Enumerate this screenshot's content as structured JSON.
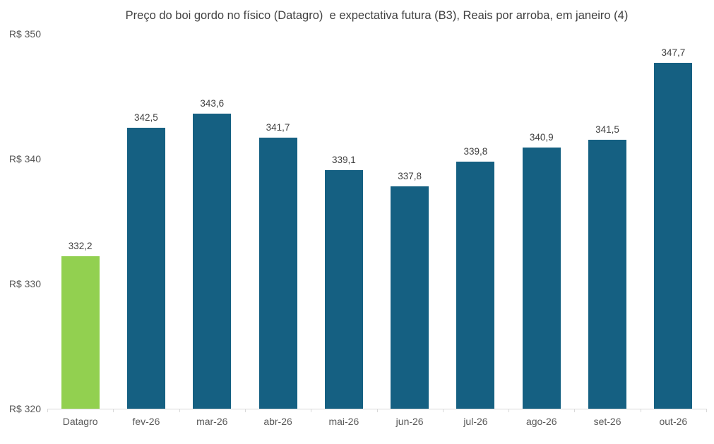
{
  "chart_data": {
    "type": "bar",
    "title": "Preço do boi gordo no físico (Datagro)  e expectativa futura (B3), Reais por arroba, em janeiro (4)",
    "categories": [
      "Datagro",
      "fev-26",
      "mar-26",
      "abr-26",
      "mai-26",
      "jun-26",
      "jul-26",
      "ago-26",
      "set-26",
      "out-26"
    ],
    "values": [
      332.2,
      342.5,
      343.6,
      341.7,
      339.1,
      337.8,
      339.8,
      340.9,
      341.5,
      347.7
    ],
    "value_labels": [
      "332,2",
      "342,5",
      "343,6",
      "341,7",
      "339,1",
      "337,8",
      "339,8",
      "340,9",
      "341,5",
      "347,7"
    ],
    "bar_colors": [
      "#92D050",
      "#156082",
      "#156082",
      "#156082",
      "#156082",
      "#156082",
      "#156082",
      "#156082",
      "#156082",
      "#156082"
    ],
    "series_colors": {
      "datagro_physical": "#92D050",
      "b3_futures": "#156082"
    },
    "y_axis": {
      "ticks": [
        {
          "label": "R$ 350",
          "value": 350
        },
        {
          "label": "R$ 340",
          "value": 340
        },
        {
          "label": "R$ 330",
          "value": 330
        },
        {
          "label": "R$ 320",
          "value": 320
        }
      ],
      "min": 320,
      "max": 350
    },
    "xlabel": "",
    "ylabel": "",
    "grid": false,
    "legend": null,
    "axis_color": "#D9D9D9"
  }
}
